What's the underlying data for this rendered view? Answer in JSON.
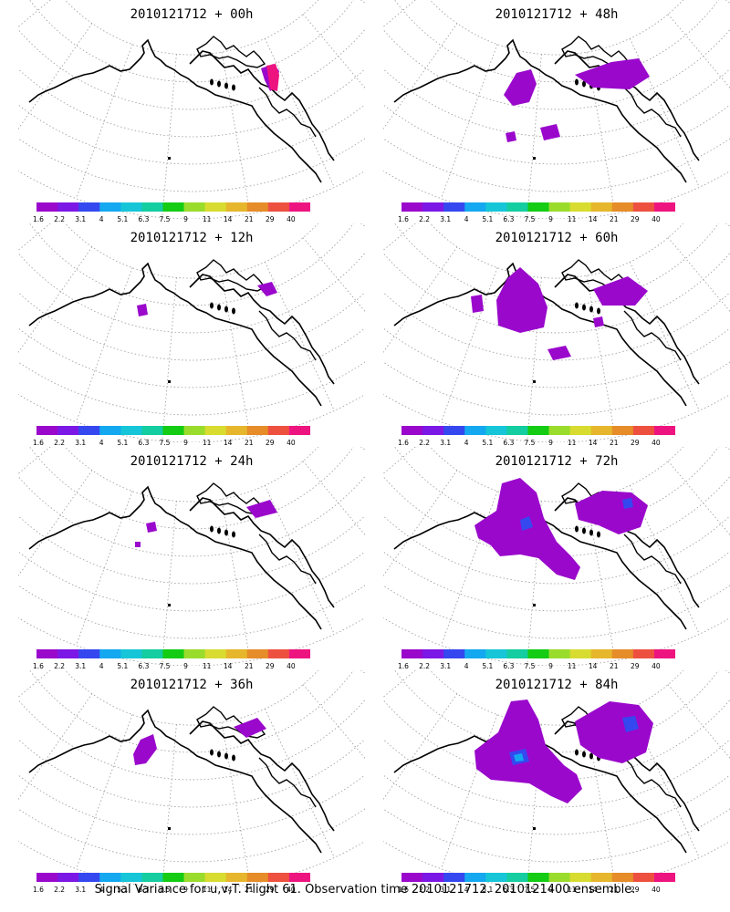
{
  "colorbar": {
    "labels": [
      "1.6",
      "2.2",
      "3.1",
      "4",
      "5.1",
      "6.3",
      "7.5",
      "9",
      "11",
      "14",
      "21",
      "29",
      "40"
    ],
    "colors": [
      "#9a08cc",
      "#7c18e6",
      "#3548f0",
      "#14a8f0",
      "#16c6d8",
      "#14cda0",
      "#14cc14",
      "#9adc2c",
      "#d8dc30",
      "#e6b62c",
      "#e68c28",
      "#ee5040",
      "#ee1480"
    ]
  },
  "panels": [
    {
      "title": "2010121712 + 00h"
    },
    {
      "title": "2010121712 + 48h"
    },
    {
      "title": "2010121712 + 12h"
    },
    {
      "title": "2010121712 + 60h"
    },
    {
      "title": "2010121712 + 24h"
    },
    {
      "title": "2010121712 + 72h"
    },
    {
      "title": "2010121712 + 36h"
    },
    {
      "title": "2010121712 + 84h"
    }
  ],
  "footer": "Signal Variance for u,v,T. Flight 61. Observation time 2010121712. 2010121400 ensemble."
}
